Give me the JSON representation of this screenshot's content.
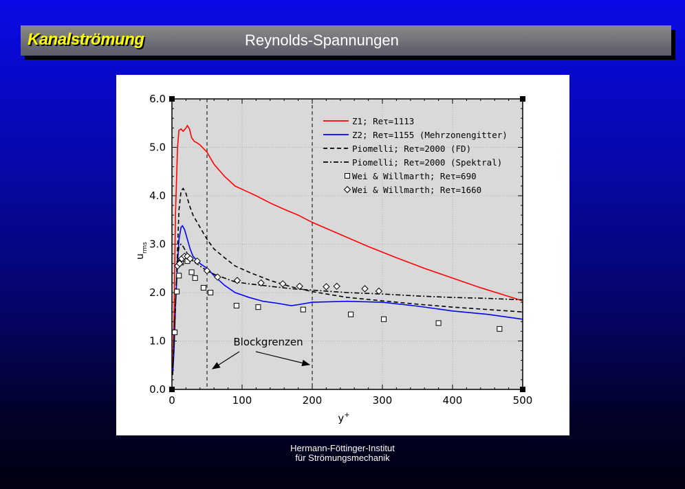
{
  "header": {
    "left_title": "Kanalströmung",
    "right_title": "Reynolds-Spannungen"
  },
  "footer": {
    "line1": "Hermann-Föttinger-Institut",
    "line2": "für Strömungsmechanik"
  },
  "chart_data": {
    "type": "line",
    "xlabel": "y+",
    "ylabel": "u rms",
    "xlim": [
      0,
      500
    ],
    "ylim": [
      0,
      6
    ],
    "x_ticks": [
      "0",
      "100",
      "200",
      "300",
      "400",
      "500"
    ],
    "y_ticks": [
      "0.0",
      "1.0",
      "2.0",
      "3.0",
      "4.0",
      "5.0",
      "6.0"
    ],
    "vlines": [
      50,
      200
    ],
    "annotation": "Blockgrenzen",
    "legend_position": "top-right",
    "colors": {
      "red": "#ff0000",
      "blue": "#0000ff",
      "black": "#000000",
      "plot_bg": "#d9d9d9"
    },
    "series": [
      {
        "name": "Z1; Reτ=1113",
        "style": "solid",
        "color": "#ff0000",
        "x": [
          1,
          3,
          5,
          8,
          10,
          13,
          16,
          20,
          22,
          25,
          28,
          32,
          35,
          40,
          50,
          60,
          75,
          90,
          105,
          120,
          140,
          160,
          180,
          200,
          240,
          280,
          320,
          360,
          400,
          440,
          480,
          500
        ],
        "y": [
          0.3,
          1.5,
          3.6,
          5.0,
          5.35,
          5.38,
          5.33,
          5.4,
          5.45,
          5.38,
          5.2,
          5.12,
          5.1,
          5.05,
          4.9,
          4.65,
          4.4,
          4.2,
          4.1,
          4.0,
          3.85,
          3.72,
          3.6,
          3.45,
          3.2,
          2.95,
          2.72,
          2.5,
          2.3,
          2.1,
          1.92,
          1.83
        ]
      },
      {
        "name": "Z2; Reτ=1155 (Mehrzonengitter)",
        "style": "solid",
        "color": "#0000ff",
        "x": [
          1,
          3,
          5,
          8,
          10,
          13,
          15,
          18,
          22,
          26,
          30,
          40,
          50,
          60,
          75,
          90,
          110,
          130,
          150,
          170,
          180,
          200,
          250,
          300,
          350,
          400,
          450,
          500
        ],
        "y": [
          0.3,
          0.8,
          1.7,
          2.6,
          3.1,
          3.35,
          3.38,
          3.3,
          3.1,
          2.9,
          2.75,
          2.6,
          2.5,
          2.35,
          2.15,
          2.0,
          1.9,
          1.82,
          1.78,
          1.73,
          1.75,
          1.8,
          1.82,
          1.8,
          1.72,
          1.62,
          1.55,
          1.45
        ]
      },
      {
        "name": "Piomelli; Reτ=2000 (FD)",
        "style": "dashed",
        "color": "#000000",
        "x": [
          1,
          5,
          10,
          13,
          16,
          20,
          25,
          30,
          40,
          50,
          60,
          75,
          90,
          110,
          140,
          170,
          200,
          250,
          300,
          350,
          400,
          450,
          500
        ],
        "y": [
          0.3,
          1.7,
          3.7,
          4.1,
          4.15,
          4.05,
          3.8,
          3.6,
          3.35,
          3.1,
          2.9,
          2.72,
          2.55,
          2.42,
          2.25,
          2.12,
          2.02,
          1.9,
          1.83,
          1.76,
          1.7,
          1.65,
          1.6
        ]
      },
      {
        "name": "Piomelli; Reτ=2000 (Spektral)",
        "style": "dashdot",
        "color": "#000000",
        "x": [
          1,
          5,
          8,
          10,
          13,
          16,
          20,
          25,
          30,
          40,
          50,
          60,
          75,
          90,
          110,
          140,
          170,
          200,
          250,
          300,
          350,
          400,
          450,
          500
        ],
        "y": [
          0.3,
          1.8,
          2.7,
          2.95,
          3.0,
          2.95,
          2.85,
          2.75,
          2.65,
          2.55,
          2.45,
          2.38,
          2.3,
          2.22,
          2.18,
          2.13,
          2.08,
          2.05,
          2.0,
          1.97,
          1.93,
          1.9,
          1.88,
          1.85
        ]
      },
      {
        "name": "Wei & Willmarth; Reτ=690",
        "style": "marker",
        "marker": "square",
        "color": "#000000",
        "x": [
          4,
          7,
          10,
          13,
          17,
          22,
          28,
          33,
          45,
          55,
          92,
          123,
          187,
          255,
          302,
          380,
          467
        ],
        "y": [
          1.18,
          2.02,
          2.35,
          2.62,
          2.7,
          2.65,
          2.42,
          2.3,
          2.1,
          2.0,
          1.73,
          1.7,
          1.65,
          1.55,
          1.45,
          1.37,
          1.25
        ]
      },
      {
        "name": "Wei & Willmarth; Reτ=1660",
        "style": "marker",
        "marker": "diamond",
        "color": "#000000",
        "x": [
          8,
          11,
          14,
          18,
          22,
          26,
          36,
          50,
          65,
          93,
          127,
          158,
          182,
          220,
          235,
          275,
          295
        ],
        "y": [
          2.55,
          2.6,
          2.7,
          2.75,
          2.75,
          2.7,
          2.65,
          2.45,
          2.32,
          2.25,
          2.2,
          2.18,
          2.13,
          2.12,
          2.13,
          2.08,
          2.03
        ]
      }
    ]
  }
}
